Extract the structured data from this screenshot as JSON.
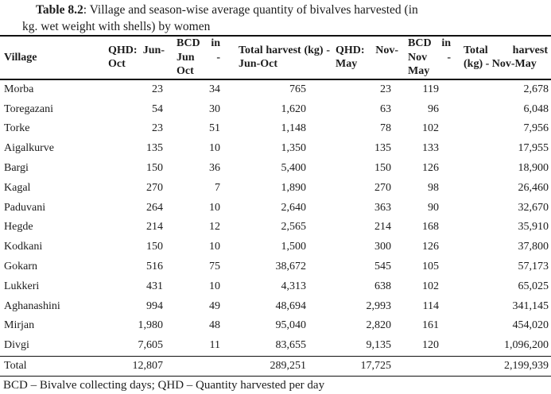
{
  "caption": {
    "table_label": "Table 8.2",
    "line1_rest": ": Village and season-wise average quantity of bivalves harvested (in",
    "line2": "kg. wet weight with shells) by women"
  },
  "table": {
    "columns": [
      {
        "key": "village",
        "label": "Village"
      },
      {
        "key": "qhd-jun-oct",
        "label": "QHD: Jun-Oct"
      },
      {
        "key": "bcd-jun-oct",
        "label": "BCD in Jun - Oct"
      },
      {
        "key": "total-jun-oct",
        "label": "Total harvest (kg) - Jun-Oct"
      },
      {
        "key": "qhd-nov-may",
        "label": "QHD: Nov-May"
      },
      {
        "key": "bcd-nov-may",
        "label": "BCD in Nov - May"
      },
      {
        "key": "total-nov-may",
        "label": "Total harvest (kg) - Nov-May"
      }
    ],
    "rows": [
      [
        "Morba",
        "23",
        "34",
        "765",
        "23",
        "119",
        "2,678"
      ],
      [
        "Toregazani",
        "54",
        "30",
        "1,620",
        "63",
        "96",
        "6,048"
      ],
      [
        "Torke",
        "23",
        "51",
        "1,148",
        "78",
        "102",
        "7,956"
      ],
      [
        "Aigalkurve",
        "135",
        "10",
        "1,350",
        "135",
        "133",
        "17,955"
      ],
      [
        "Bargi",
        "150",
        "36",
        "5,400",
        "150",
        "126",
        "18,900"
      ],
      [
        "Kagal",
        "270",
        "7",
        "1,890",
        "270",
        "98",
        "26,460"
      ],
      [
        "Paduvani",
        "264",
        "10",
        "2,640",
        "363",
        "90",
        "32,670"
      ],
      [
        "Hegde",
        "214",
        "12",
        "2,565",
        "214",
        "168",
        "35,910"
      ],
      [
        "Kodkani",
        "150",
        "10",
        "1,500",
        "300",
        "126",
        "37,800"
      ],
      [
        "Gokarn",
        "516",
        "75",
        "38,672",
        "545",
        "105",
        "57,173"
      ],
      [
        "Lukkeri",
        "431",
        "10",
        "4,313",
        "638",
        "102",
        "65,025"
      ],
      [
        "Aghanashini",
        "994",
        "49",
        "48,694",
        "2,993",
        "114",
        "341,145"
      ],
      [
        "Mirjan",
        "1,980",
        "48",
        "95,040",
        "2,820",
        "161",
        "454,020"
      ],
      [
        "Divgi",
        "7,605",
        "11",
        "83,655",
        "9,135",
        "120",
        "1,096,200"
      ]
    ],
    "total_row": [
      "Total",
      "12,807",
      "",
      "289,251",
      "17,725",
      "",
      "2,199,939"
    ]
  },
  "footnote": "BCD – Bivalve collecting days; QHD – Quantity harvested per day",
  "colors": {
    "text": "#1c1c1c",
    "rule": "#111111",
    "background": "#ffffff"
  }
}
